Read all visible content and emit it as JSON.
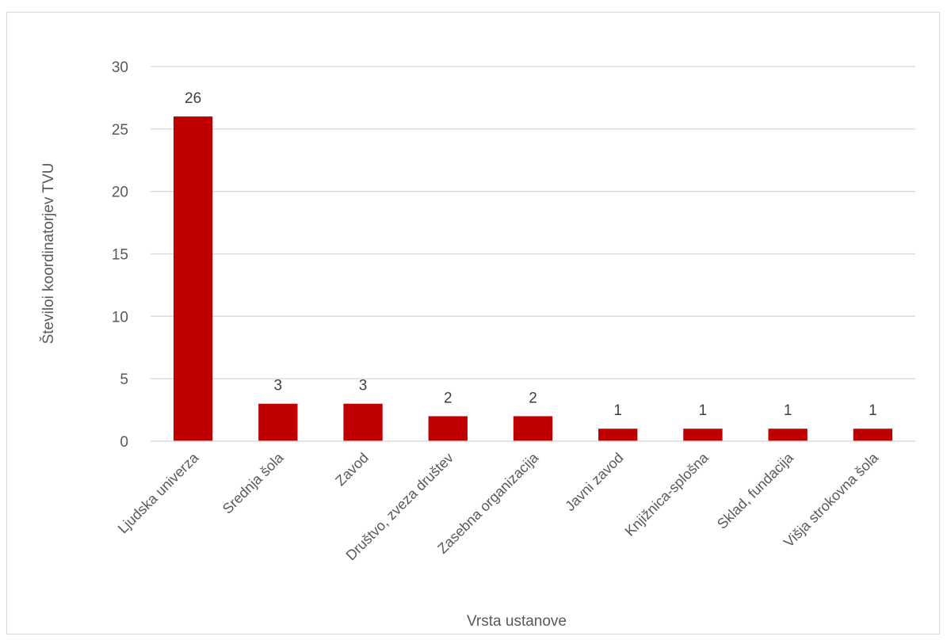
{
  "chart_data": {
    "type": "bar",
    "title": "",
    "xlabel": "Vrsta ustanove",
    "ylabel": "Številoi koordinatorjev TVU",
    "categories": [
      "Ljudska univerza",
      "Srednja šola",
      "Zavod",
      "Društvo, zveza društev",
      "Zasebna organizacija",
      "Javni zavod",
      "Knjižnica-splošna",
      "Sklad, fundacija",
      "Višja strokovna šola"
    ],
    "values": [
      26,
      3,
      3,
      2,
      2,
      1,
      1,
      1,
      1
    ],
    "ylim": [
      0,
      30
    ],
    "yticks": [
      0,
      5,
      10,
      15,
      20,
      25,
      30
    ],
    "grid": true,
    "legend": "none",
    "bar_color": "#c00000",
    "grid_color": "#d9d9d9"
  }
}
